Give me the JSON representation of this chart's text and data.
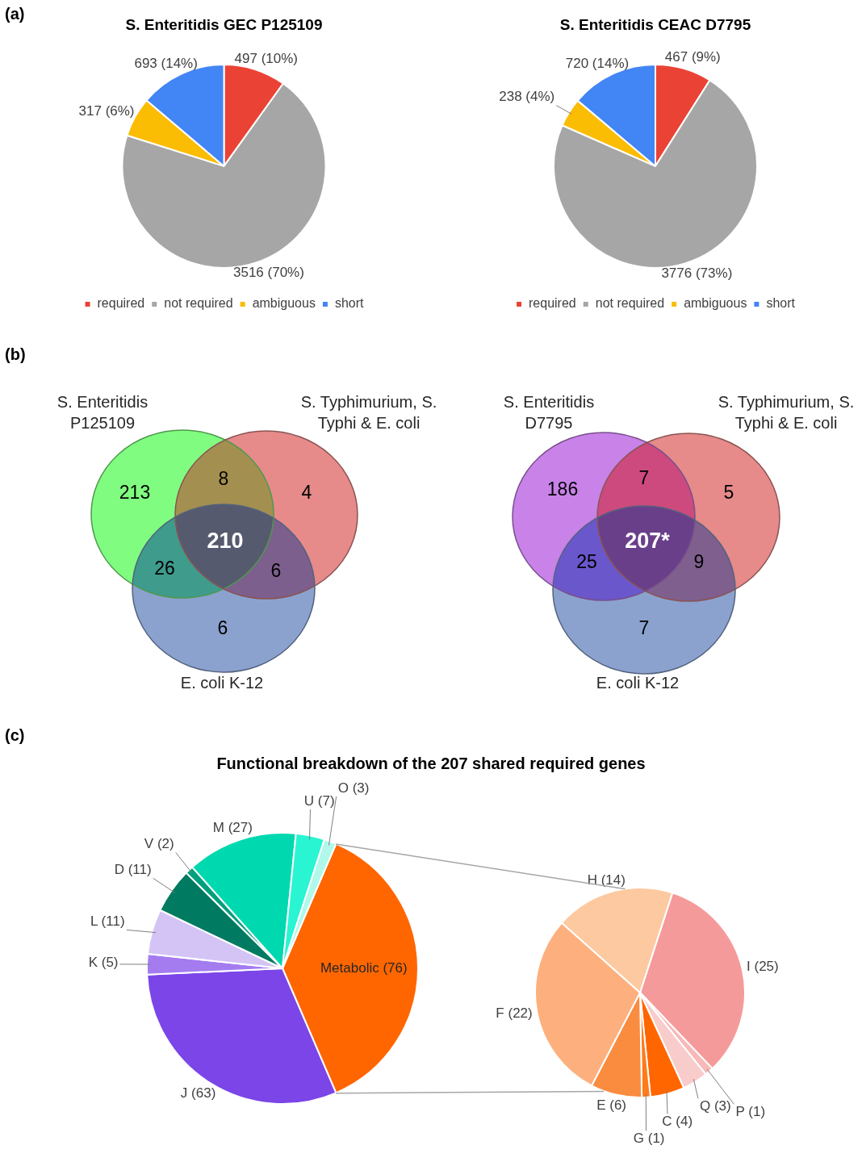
{
  "chart_data": [
    {
      "type": "pie",
      "title": "S. Enteritidis GEC P125109",
      "annotations": [
        "(a)"
      ],
      "categories": [
        "required",
        "not required",
        "ambiguous",
        "short"
      ],
      "values": [
        497,
        3516,
        317,
        693
      ],
      "colors": [
        "#ea4335",
        "#a6a6a6",
        "#fbbc04",
        "#4285f4"
      ],
      "value_labels": [
        "497 (10%)",
        "3516 (70%)",
        "317 (6%)",
        "693 (14%)"
      ],
      "legend": "bottom"
    },
    {
      "type": "pie",
      "title": "S. Enteritidis CEAC D7795",
      "categories": [
        "required",
        "not required",
        "ambiguous",
        "short"
      ],
      "values": [
        467,
        3776,
        238,
        720
      ],
      "colors": [
        "#ea4335",
        "#a6a6a6",
        "#fbbc04",
        "#4285f4"
      ],
      "value_labels": [
        "467 (9%)",
        "3776 (73%)",
        "238 (4%)",
        "720 (14%)"
      ],
      "legend": "bottom"
    },
    {
      "type": "other",
      "annotations": [
        "(b)",
        "S. Enteritidis P125109",
        "S. Typhimurium, S. Typhi & E. coli",
        "E. coli K-12",
        "213",
        "8",
        "4",
        "210",
        "26",
        "6",
        "6"
      ],
      "colors": [
        "#80fd80",
        "#a39050",
        "#e68a8a",
        "#565a6e",
        "#3f9b8c",
        "#7d5f8e",
        "#8ba2cf"
      ]
    },
    {
      "type": "other",
      "annotations": [
        "S. Enteritidis D7795",
        "S. Typhimurium, S. Typhi & E. coli",
        "E. coli K-12",
        "186",
        "7",
        "5",
        "207*",
        "25",
        "9",
        "7"
      ],
      "colors": [
        "#c882e8",
        "#cc4a7e",
        "#e68a8a",
        "#6a3f8a",
        "#6a57cc",
        "#7f5f8e",
        "#8ba2cf"
      ]
    },
    {
      "type": "pie",
      "title": "Functional breakdown of the 207 shared required genes",
      "annotations": [
        "(c)"
      ],
      "categories": [
        "Metabolic",
        "J",
        "K",
        "L",
        "D",
        "V",
        "M",
        "U",
        "O"
      ],
      "values": [
        76,
        63,
        5,
        11,
        11,
        2,
        27,
        7,
        3
      ],
      "colors": [
        "#ff6600",
        "#7b45e8",
        "#a47cf0",
        "#d4c4f5",
        "#007a60",
        "#00a07c",
        "#00d8b0",
        "#29f5d2",
        "#b0f8ea"
      ],
      "value_labels": [
        "(76)",
        "(63)",
        "(5)",
        "(11)",
        "(11)",
        "(2)",
        "(27)",
        "(7)",
        "(3)"
      ]
    },
    {
      "type": "pie",
      "categories": [
        "I",
        "P",
        "Q",
        "C",
        "G",
        "E",
        "F",
        "H"
      ],
      "values": [
        25,
        1,
        3,
        4,
        1,
        6,
        22,
        14
      ],
      "colors": [
        "#f59a9a",
        "#f8b9b9",
        "#f9cccc",
        "#ff6600",
        "#ff7a1a",
        "#fa8c40",
        "#fdb07d",
        "#fdc9a0"
      ],
      "value_labels": [
        "(25)",
        "(1)",
        "(3)",
        "(4)",
        "(1)",
        "(6)",
        "(22)",
        "(14)"
      ]
    }
  ]
}
